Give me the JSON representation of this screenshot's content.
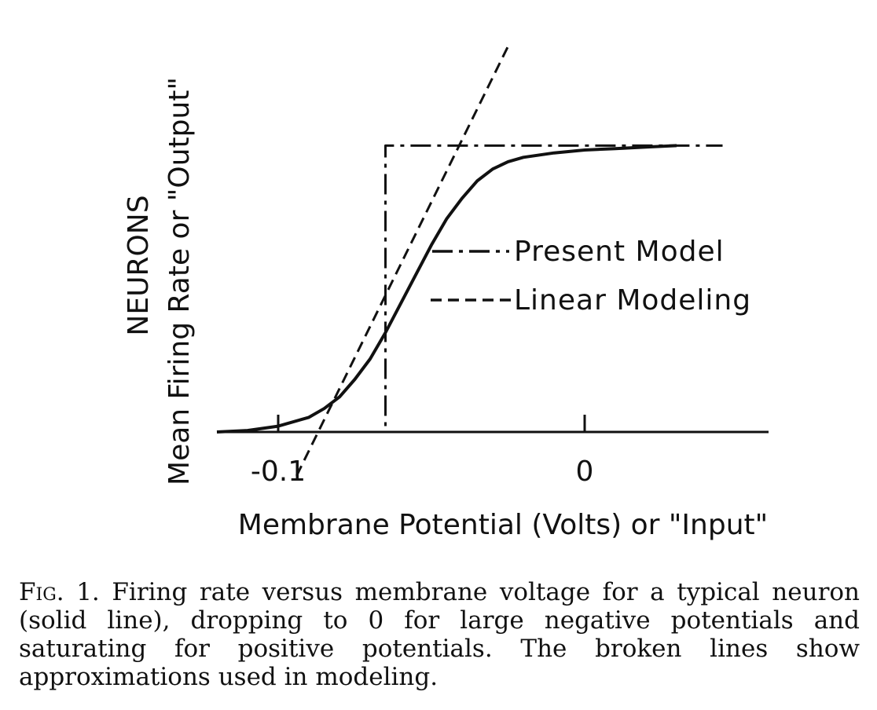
{
  "chart_data": {
    "type": "line",
    "title": "",
    "xlabel": "Membrane Potential (Volts) or \"Input\"",
    "ylabel_line1": "NEURONS",
    "ylabel_line2": "Mean Firing Rate or \"Output\"",
    "xlim": [
      -0.12,
      0.06
    ],
    "ylim": [
      0,
      1.0
    ],
    "xticks": [
      {
        "value": -0.1,
        "label": "-0.1"
      },
      {
        "value": 0,
        "label": "0"
      }
    ],
    "grid": false,
    "legend_position": "center-right",
    "series": [
      {
        "name": "",
        "style": "solid",
        "x": [
          -0.12,
          -0.11,
          -0.1,
          -0.09,
          -0.085,
          -0.08,
          -0.075,
          -0.07,
          -0.065,
          -0.06,
          -0.055,
          -0.05,
          -0.045,
          -0.04,
          -0.035,
          -0.03,
          -0.025,
          -0.02,
          -0.01,
          0,
          0.01,
          0.02,
          0.03
        ],
        "y": [
          0,
          0.005,
          0.02,
          0.05,
          0.08,
          0.12,
          0.18,
          0.25,
          0.34,
          0.44,
          0.54,
          0.64,
          0.73,
          0.8,
          0.86,
          0.9,
          0.925,
          0.94,
          0.955,
          0.965,
          0.97,
          0.975,
          0.98
        ]
      },
      {
        "name": "Present Model",
        "style": "dash-dot",
        "x": [
          -0.12,
          -0.065,
          -0.065,
          0.045
        ],
        "y": [
          0,
          0,
          0.98,
          0.98
        ]
      },
      {
        "name": "Linear Modeling",
        "style": "dashed",
        "x": [
          -0.094,
          -0.025
        ],
        "y": [
          -0.15,
          1.32
        ]
      }
    ]
  },
  "caption": {
    "label": "Fig. 1.",
    "text": "Firing rate versus membrane voltage for a typical neuron (solid line), dropping to 0 for large negative potentials and saturating for positive potentials. The broken lines show approximations used in modeling."
  }
}
